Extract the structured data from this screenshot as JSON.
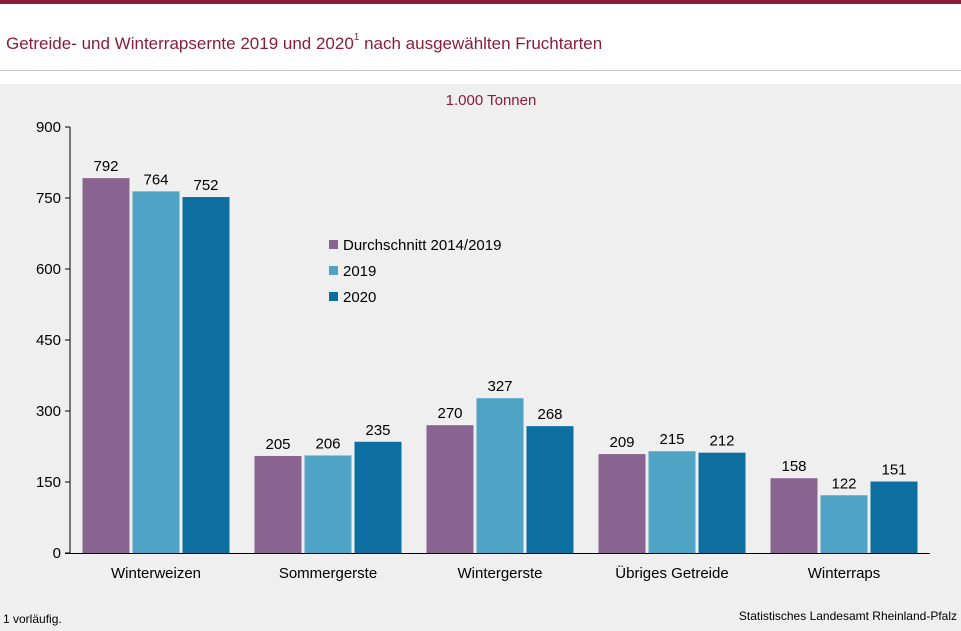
{
  "header": {
    "title_main": "Getreide- und Winterrapsernte 2019 und 2020",
    "title_sup": "1",
    "title_rest": " nach ausgewählten Fruchtarten"
  },
  "footer": {
    "footnote": "1 vorläufig.",
    "source": "Statistisches Landesamt Rheinland-Pfalz"
  },
  "chart_data": {
    "type": "bar",
    "unit": "1.000 Tonnen",
    "categories": [
      "Winterweizen",
      "Sommergerste",
      "Wintergerste",
      "Übriges Getreide",
      "Winterraps"
    ],
    "series": [
      {
        "name": "Durchschnitt 2014/2019",
        "color": "#8a6490",
        "values": [
          792,
          205,
          270,
          209,
          158
        ]
      },
      {
        "name": "2019",
        "color": "#4fa3c5",
        "values": [
          764,
          206,
          327,
          215,
          122
        ]
      },
      {
        "name": "2020",
        "color": "#0c6fa0",
        "values": [
          752,
          235,
          268,
          212,
          151
        ]
      }
    ],
    "ylim": [
      0,
      900
    ],
    "yticks": [
      0,
      150,
      300,
      450,
      600,
      750,
      900
    ],
    "legend_position": "center",
    "grid": false
  }
}
